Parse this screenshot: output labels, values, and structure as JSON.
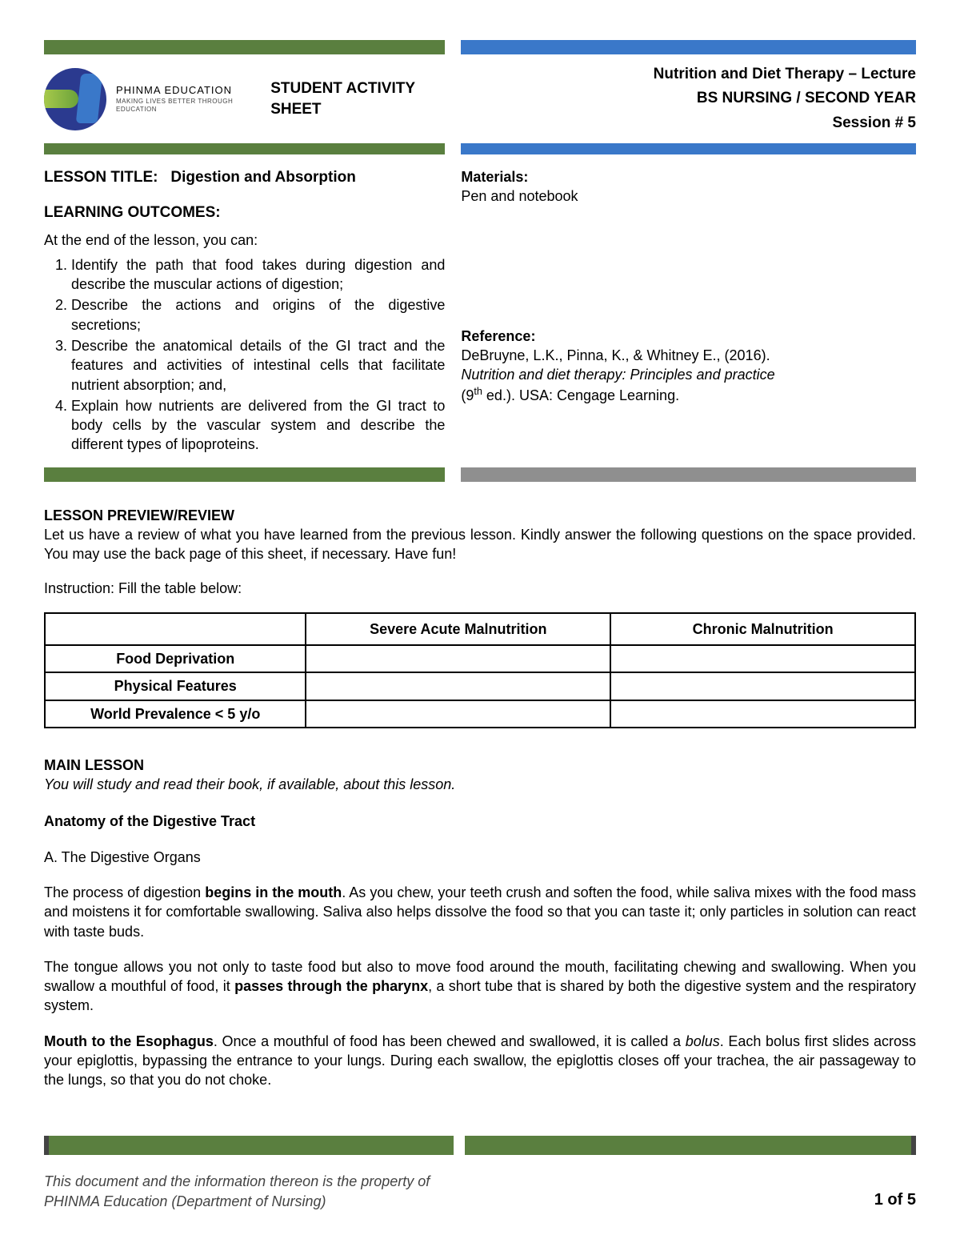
{
  "colors": {
    "green": "#5a7f3f",
    "blue": "#3a78c9",
    "grey": "#8f8f8f",
    "text": "#000000",
    "footer_text": "#444444",
    "background": "#ffffff"
  },
  "brand": {
    "name": "PHINMA EDUCATION",
    "sub": "MAKING LIVES BETTER THROUGH EDUCATION"
  },
  "header": {
    "sheet_title": "STUDENT ACTIVITY SHEET",
    "course_line1": "Nutrition and Diet Therapy – Lecture",
    "course_line2": "BS NURSING / SECOND YEAR",
    "session": "Session # 5"
  },
  "lesson": {
    "title_label": "LESSON TITLE:",
    "title_value": "Digestion and Absorption",
    "outcomes_label": "LEARNING OUTCOMES:",
    "outcomes_intro": "At the end of the lesson, you can:",
    "outcomes": [
      "Identify the path that food takes during digestion and describe the muscular actions of digestion;",
      "Describe the actions and origins of the digestive secretions;",
      "Describe the anatomical details of the GI tract and the features and activities of intestinal cells that facilitate nutrient absorption; and,",
      "Explain how nutrients are delivered from the GI tract to body cells by the vascular system and describe the different types of lipoproteins."
    ]
  },
  "materials": {
    "label": "Materials:",
    "text": "Pen and notebook"
  },
  "reference": {
    "label": "Reference:",
    "line1": "DeBruyne, L.K., Pinna, K., & Whitney E., (2016).",
    "line2_italic": "Nutrition and diet therapy: Principles and practice",
    "line3_prefix": "(9",
    "line3_sup": "th",
    "line3_suffix": " ed.). USA: Cengage Learning."
  },
  "preview": {
    "label": "LESSON PREVIEW/REVIEW",
    "text": "Let us have a review of what you have learned from the previous lesson. Kindly answer the following questions on the space provided. You may use the back page of this sheet, if necessary. Have fun!",
    "instruction": "Instruction:  Fill the table below:"
  },
  "table": {
    "col1": "Severe Acute Malnutrition",
    "col2": "Chronic Malnutrition",
    "rows": [
      "Food Deprivation",
      "Physical Features",
      "World Prevalence < 5 y/o"
    ]
  },
  "main": {
    "label": "MAIN LESSON",
    "sub": "You will study and read their book, if available, about this lesson.",
    "anatomy_title": "Anatomy of the Digestive Tract",
    "list_a": "A.   The Digestive Organs",
    "p1_a": "The process of digestion ",
    "p1_b_bold": "begins in the mouth",
    "p1_c": ". As you chew, your teeth crush and soften the food, while saliva mixes with the food mass and moistens it for comfortable swallowing. Saliva also helps dissolve the food so that you can taste it; only particles in solution can react with taste buds.",
    "p2_a": "The tongue allows you not only to taste food but also to move food around the mouth, facilitating chewing and swallowing. When you swallow a mouthful of food, it ",
    "p2_b_bold": "passes through the pharynx",
    "p2_c": ", a short tube that is shared by both the digestive system and the respiratory system.",
    "p3_a_bold": "Mouth to the Esophagus",
    "p3_b": ". Once a mouthful of food has been chewed and swallowed, it is called a ",
    "p3_c_ital": "bolus",
    "p3_d": ". Each bolus first slides across your epiglottis, bypassing the entrance to your lungs. During each swallow, the epiglottis closes off your trachea, the air passageway to the lungs, so that you do not choke."
  },
  "footer": {
    "line1": "This document and the information thereon is the property of",
    "line2": "PHINMA Education (Department of Nursing)",
    "page": "1 of 5"
  }
}
